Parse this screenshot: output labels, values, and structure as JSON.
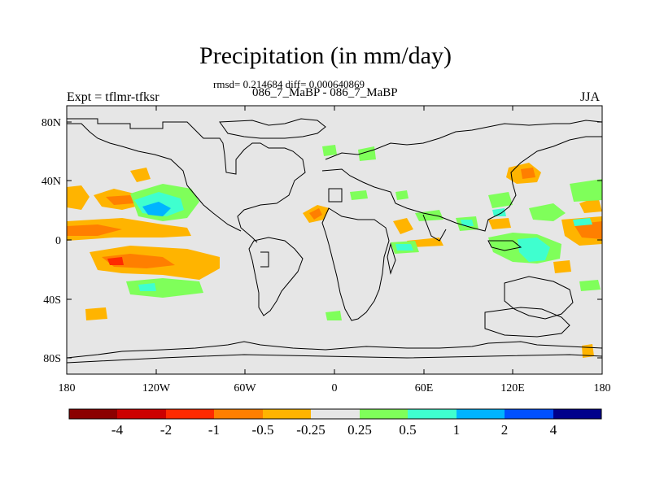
{
  "header": {
    "title": "Precipitation (in mm/day)",
    "stats": "rmsd= 0.214684 diff= 0.000640869",
    "cases": "086_7_MaBP - 086_7_MaBP",
    "expt": "Expt = tflmr-tfksr",
    "season": "JJA"
  },
  "axes": {
    "y_labels": [
      "80N",
      "40N",
      "0",
      "40S",
      "80S"
    ],
    "x_labels": [
      "180",
      "120W",
      "60W",
      "0",
      "60E",
      "120E",
      "180"
    ]
  },
  "colorbar": {
    "colors": [
      "#8b0000",
      "#cc0000",
      "#ff2a00",
      "#ff7f00",
      "#ffb400",
      "#e6e6e6",
      "#7fff5a",
      "#3fffcf",
      "#00b4ff",
      "#0050ff",
      "#00008b"
    ],
    "labels": [
      "-4",
      "-2",
      "-1",
      "-0.5",
      "-0.25",
      "0.25",
      "0.5",
      "1",
      "2",
      "4"
    ]
  },
  "colors": {
    "background": "#e6e6e6",
    "orange": "#ffb400",
    "red_orange": "#ff7f00",
    "green": "#7fff5a",
    "cyan": "#3fffcf",
    "blue": "#00b4ff"
  }
}
